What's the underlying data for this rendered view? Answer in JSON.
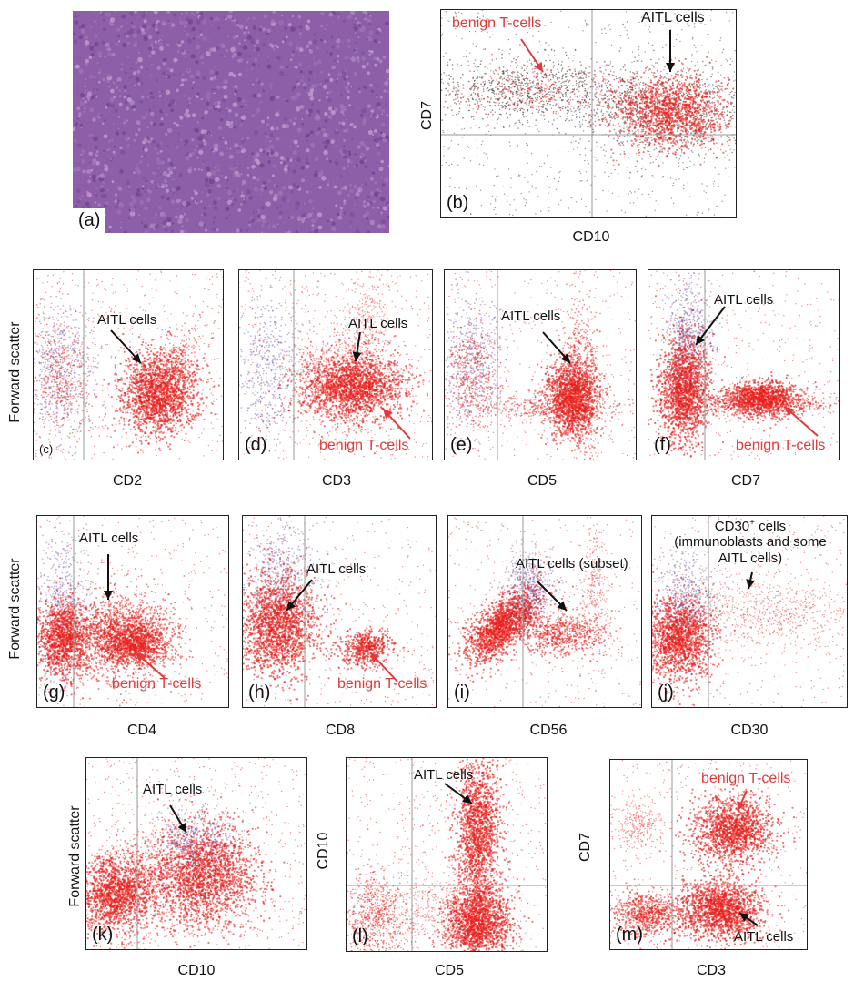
{
  "panel_a": {
    "label": "(a)"
  },
  "panel_b": {
    "label": "(b)",
    "xlabel": "CD10",
    "ylabel": "CD7",
    "ann_benign": "benign T-cells",
    "ann_aitl": "AITL cells"
  },
  "row1": {
    "ylabel": "Forward scatter",
    "c": {
      "label": "(c)",
      "xlabel": "CD2",
      "ann_aitl": "AITL cells"
    },
    "d": {
      "label": "(d)",
      "xlabel": "CD3",
      "ann_aitl": "AITL cells",
      "ann_benign": "benign T-cells"
    },
    "e": {
      "label": "(e)",
      "xlabel": "CD5",
      "ann_aitl": "AITL cells"
    },
    "f": {
      "label": "(f)",
      "xlabel": "CD7",
      "ann_aitl": "AITL cells",
      "ann_benign": "benign T-cells"
    }
  },
  "row2": {
    "ylabel": "Forward scatter",
    "g": {
      "label": "(g)",
      "xlabel": "CD4",
      "ann_aitl": "AITL cells",
      "ann_benign": "benign T-cells"
    },
    "h": {
      "label": "(h)",
      "xlabel": "CD8",
      "ann_aitl": "AITL cells",
      "ann_benign": "benign T-cells"
    },
    "i": {
      "label": "(i)",
      "xlabel": "CD56",
      "ann_aitl": "AITL cells (subset)"
    },
    "j": {
      "label": "(j)",
      "xlabel": "CD30",
      "ann_line1": "CD30",
      "ann_sup": "+",
      "ann_line1b": " cells",
      "ann_line2": "(immunoblasts and some",
      "ann_line3": "AITL cells)"
    }
  },
  "row3": {
    "k": {
      "label": "(k)",
      "xlabel": "CD10",
      "ylabel": "Forward scatter",
      "ann_aitl": "AITL cells"
    },
    "l": {
      "label": "(l)",
      "xlabel": "CD5",
      "ylabel": "CD10",
      "ann_aitl": "AITL cells"
    },
    "m": {
      "label": "(m)",
      "xlabel": "CD3",
      "ylabel": "CD7",
      "ann_benign": "benign T-cells",
      "ann_aitl": "AITL cells"
    }
  },
  "colors": {
    "red": "#e03a3a",
    "dot_red": "#e8201c",
    "dot_purple": "#6a4c9c",
    "dot_dark": "#333333",
    "histology": "#8a5aa8"
  }
}
